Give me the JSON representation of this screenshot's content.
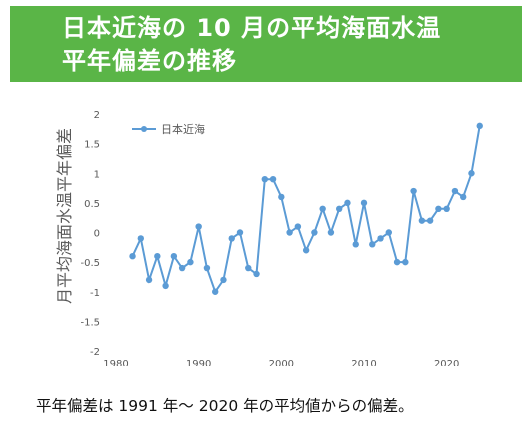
{
  "title": {
    "line1": "日本近海の 10 月の平均海面水温",
    "line2": "平年偏差の推移"
  },
  "footnote": "平年偏差は 1991 年～ 2020 年の平均値からの偏差。",
  "colors": {
    "banner": "#5ab547",
    "series": "#5b9bd5",
    "axis_text": "#595959"
  },
  "chart_data": {
    "type": "line",
    "ylabel": "月平均海面水温平年偏差",
    "xlabel": "",
    "xlim": [
      1980,
      2025
    ],
    "ylim": [
      -2,
      2
    ],
    "xticks": [
      1980,
      1990,
      2000,
      2010,
      2020
    ],
    "yticks": [
      "2",
      "1.5",
      "1",
      "0.5",
      "0",
      "-0.5",
      "-1",
      "-1.5",
      "-2"
    ],
    "ytick_values": [
      2,
      1.5,
      1,
      0.5,
      0,
      -0.5,
      -1,
      -1.5,
      -2
    ],
    "grid": false,
    "legend": "top-left",
    "series": [
      {
        "name": "日本近海",
        "x": [
          1982,
          1983,
          1984,
          1985,
          1986,
          1987,
          1988,
          1989,
          1990,
          1991,
          1992,
          1993,
          1994,
          1995,
          1996,
          1997,
          1998,
          1999,
          2000,
          2001,
          2002,
          2003,
          2004,
          2005,
          2006,
          2007,
          2008,
          2009,
          2010,
          2011,
          2012,
          2013,
          2014,
          2015,
          2016,
          2017,
          2018,
          2019,
          2020,
          2021,
          2022,
          2023,
          2024
        ],
        "y": [
          -0.4,
          -0.1,
          -0.8,
          -0.4,
          -0.9,
          -0.4,
          -0.6,
          -0.5,
          0.1,
          -0.6,
          -1.0,
          -0.8,
          -0.1,
          0.0,
          -0.6,
          -0.7,
          0.9,
          0.9,
          0.6,
          0.0,
          0.1,
          -0.3,
          0.0,
          0.4,
          0.0,
          0.4,
          0.5,
          -0.2,
          0.5,
          -0.2,
          -0.1,
          0.0,
          -0.5,
          -0.5,
          0.7,
          0.2,
          0.2,
          0.4,
          0.4,
          0.7,
          0.6,
          1.0,
          1.8
        ]
      }
    ]
  }
}
